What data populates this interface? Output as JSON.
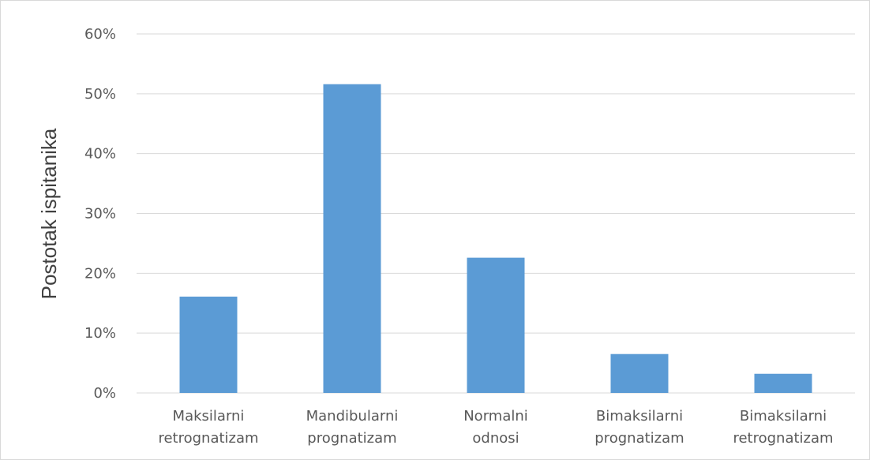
{
  "chart_data": {
    "type": "bar",
    "title": "",
    "xlabel": "",
    "ylabel": "Postotak ispitanika",
    "ylim": [
      0,
      60
    ],
    "yticks": [
      0,
      10,
      20,
      30,
      40,
      50,
      60
    ],
    "ytick_labels": [
      "0%",
      "10%",
      "20%",
      "30%",
      "40%",
      "50%",
      "60%"
    ],
    "grid": true,
    "legend": "none",
    "categories": [
      [
        "Maksilarni",
        "retrognatizam"
      ],
      [
        "Mandibularni",
        "prognatizam"
      ],
      [
        "Normalni",
        "odnosi"
      ],
      [
        "Bimaksilarni",
        "prognatizam"
      ],
      [
        "Bimaksilarni",
        "retrognatizam"
      ]
    ],
    "values": [
      16.1,
      51.6,
      22.6,
      6.5,
      3.2
    ],
    "bar_color": "#5b9bd5"
  }
}
